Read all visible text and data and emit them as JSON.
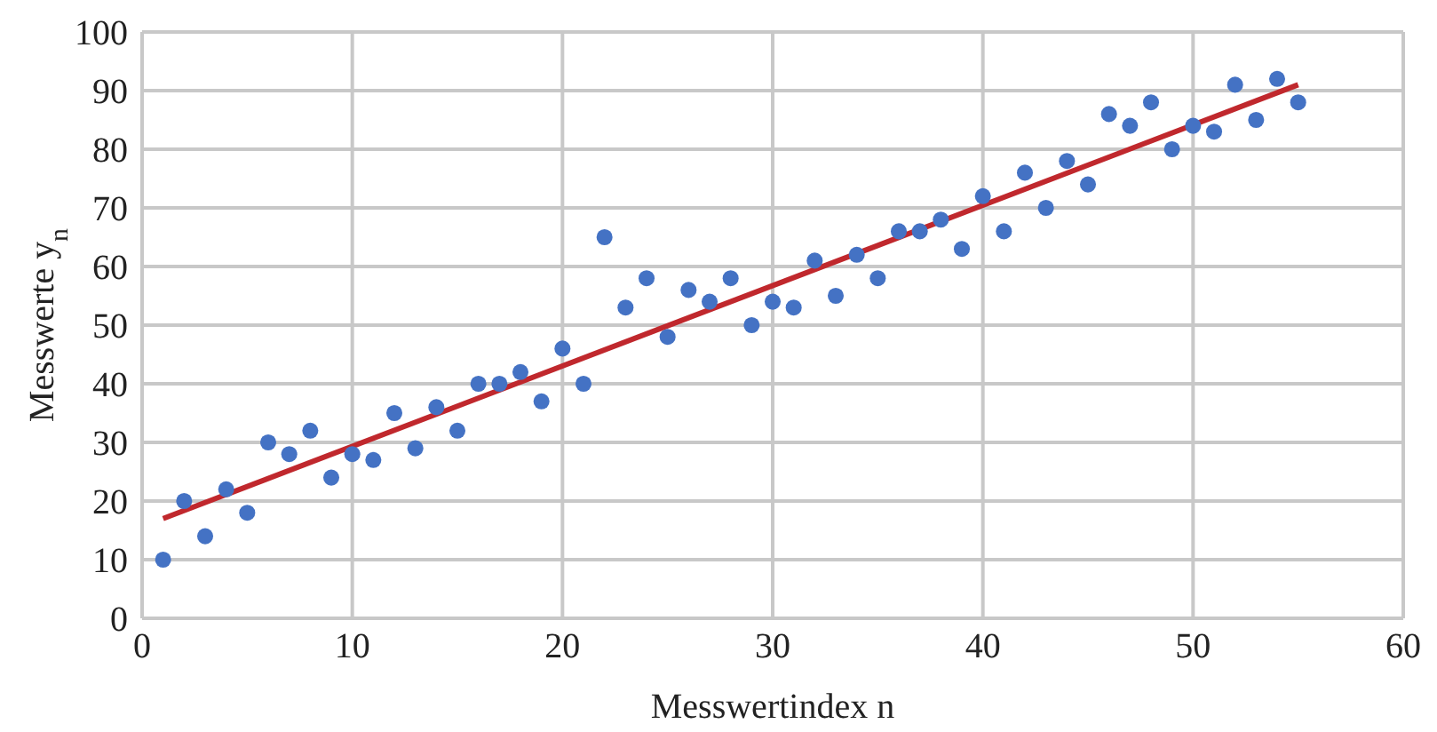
{
  "chart_data": {
    "type": "scatter",
    "xlabel": "Messwertindex n",
    "ylabel": "Messwerte  y$_{n}$",
    "xlim": [
      0,
      60
    ],
    "xticks": [
      0,
      10,
      20,
      30,
      40,
      50,
      60
    ],
    "ylim": [
      0,
      100
    ],
    "yticks": [
      0,
      10,
      20,
      30,
      40,
      50,
      60,
      70,
      80,
      90,
      100
    ],
    "grid": true,
    "series": [
      {
        "color": "#4472c4",
        "marker": "circle",
        "x": [
          1,
          2,
          3,
          4,
          5,
          6,
          7,
          8,
          9,
          10,
          11,
          12,
          13,
          14,
          15,
          16,
          17,
          18,
          19,
          20,
          21,
          22,
          23,
          24,
          25,
          26,
          27,
          28,
          29,
          30,
          31,
          32,
          33,
          34,
          35,
          36,
          37,
          38,
          39,
          40,
          41,
          42,
          43,
          44,
          45,
          46,
          47,
          48,
          49,
          50,
          51,
          52,
          53,
          54,
          55
        ],
        "values": [
          10,
          20,
          14,
          22,
          18,
          30,
          28,
          32,
          24,
          28,
          27,
          35,
          29,
          36,
          32,
          40,
          40,
          42,
          37,
          46,
          40,
          65,
          53,
          58,
          48,
          56,
          54,
          58,
          50,
          54,
          53,
          61,
          55,
          62,
          58,
          66,
          66,
          68,
          63,
          72,
          66,
          76,
          70,
          78,
          74,
          86,
          84,
          88,
          80,
          84,
          83,
          91,
          85,
          92,
          88
        ]
      },
      {
        "type": "line",
        "marker": "none",
        "color": "#c0282d",
        "x": [
          1,
          55
        ],
        "values": [
          17,
          91
        ]
      }
    ]
  }
}
